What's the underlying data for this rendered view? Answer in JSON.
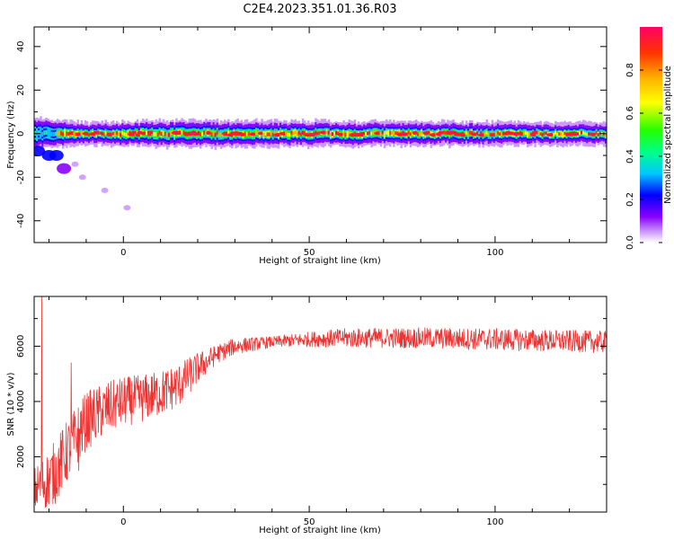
{
  "figure": {
    "title": "C2E4.2023.351.01.36.R03"
  },
  "chart_data": [
    {
      "type": "heatmap",
      "title": "",
      "xlabel": "Height of straight line (km)",
      "ylabel": "Frequency (Hz)",
      "xlim": [
        -24,
        130
      ],
      "ylim": [
        -50,
        49
      ],
      "x_ticks": [
        0,
        50,
        100
      ],
      "y_ticks": [
        -40,
        -20,
        0,
        20,
        40
      ],
      "colorbar": {
        "label": "Normalized spectral amplitude",
        "range": [
          0.0,
          1.0
        ],
        "ticks": [
          0.0,
          0.2,
          0.4,
          0.6,
          0.8
        ],
        "tick_labels": [
          "0.0",
          "0.2",
          "0.4",
          "0.6",
          "0.8"
        ],
        "colormap": [
          "#ffffff",
          "#cc99ff",
          "#8800ff",
          "#0000ff",
          "#00c8ff",
          "#00ff88",
          "#22ff00",
          "#ffff00",
          "#ffb300",
          "#ff3300",
          "#ff0066"
        ]
      },
      "main_band": {
        "center_hz": 0,
        "x_range": [
          -24,
          130
        ],
        "halfwidth_hz": [
          {
            "x": -24,
            "hz": 5
          },
          {
            "x": -10,
            "hz": 3
          },
          {
            "x": 10,
            "hz": 4
          },
          {
            "x": 130,
            "hz": 3
          }
        ]
      },
      "early_artifacts": [
        {
          "x": -23,
          "y": -8,
          "value": 0.25
        },
        {
          "x": -20,
          "y": -10,
          "value": 0.3
        },
        {
          "x": -18,
          "y": -10,
          "value": 0.28
        },
        {
          "x": -16,
          "y": -16,
          "value": 0.22
        },
        {
          "x": -13,
          "y": -14,
          "value": 0.1
        },
        {
          "x": -11,
          "y": -20,
          "value": 0.08
        },
        {
          "x": -5,
          "y": -26,
          "value": 0.08
        },
        {
          "x": 1,
          "y": -34,
          "value": 0.05
        }
      ]
    },
    {
      "type": "line",
      "title": "",
      "xlabel": "Height of straight line (km)",
      "ylabel": "SNR (10 * v/v)",
      "xlim": [
        -24,
        130
      ],
      "ylim": [
        0,
        7800
      ],
      "x_ticks": [
        0,
        50,
        100
      ],
      "y_ticks": [
        2000,
        4000,
        6000
      ],
      "series": [
        {
          "color": "#ee3333",
          "trend": [
            {
              "x": -24,
              "y": 800
            },
            {
              "x": -20,
              "y": 1200
            },
            {
              "x": -18,
              "y": 1500
            },
            {
              "x": -15,
              "y": 2200
            },
            {
              "x": -10,
              "y": 3300
            },
            {
              "x": -5,
              "y": 3700
            },
            {
              "x": 0,
              "y": 4000
            },
            {
              "x": 5,
              "y": 4100
            },
            {
              "x": 10,
              "y": 4300
            },
            {
              "x": 15,
              "y": 4600
            },
            {
              "x": 20,
              "y": 5200
            },
            {
              "x": 25,
              "y": 5700
            },
            {
              "x": 30,
              "y": 6000
            },
            {
              "x": 40,
              "y": 6150
            },
            {
              "x": 50,
              "y": 6250
            },
            {
              "x": 60,
              "y": 6300
            },
            {
              "x": 80,
              "y": 6300
            },
            {
              "x": 100,
              "y": 6250
            },
            {
              "x": 130,
              "y": 6150
            }
          ],
          "spread": [
            {
              "x": -24,
              "y": 800
            },
            {
              "x": -18,
              "y": 1200
            },
            {
              "x": 0,
              "y": 900
            },
            {
              "x": 15,
              "y": 800
            },
            {
              "x": 25,
              "y": 350
            },
            {
              "x": 40,
              "y": 200
            },
            {
              "x": 60,
              "y": 350
            },
            {
              "x": 100,
              "y": 400
            },
            {
              "x": 130,
              "y": 400
            }
          ],
          "spikes": [
            {
              "x": -22,
              "y": 7800
            },
            {
              "x": -21,
              "y": 200
            },
            {
              "x": -14,
              "y": 5400
            },
            {
              "x": -12,
              "y": 1500
            }
          ]
        }
      ]
    }
  ]
}
